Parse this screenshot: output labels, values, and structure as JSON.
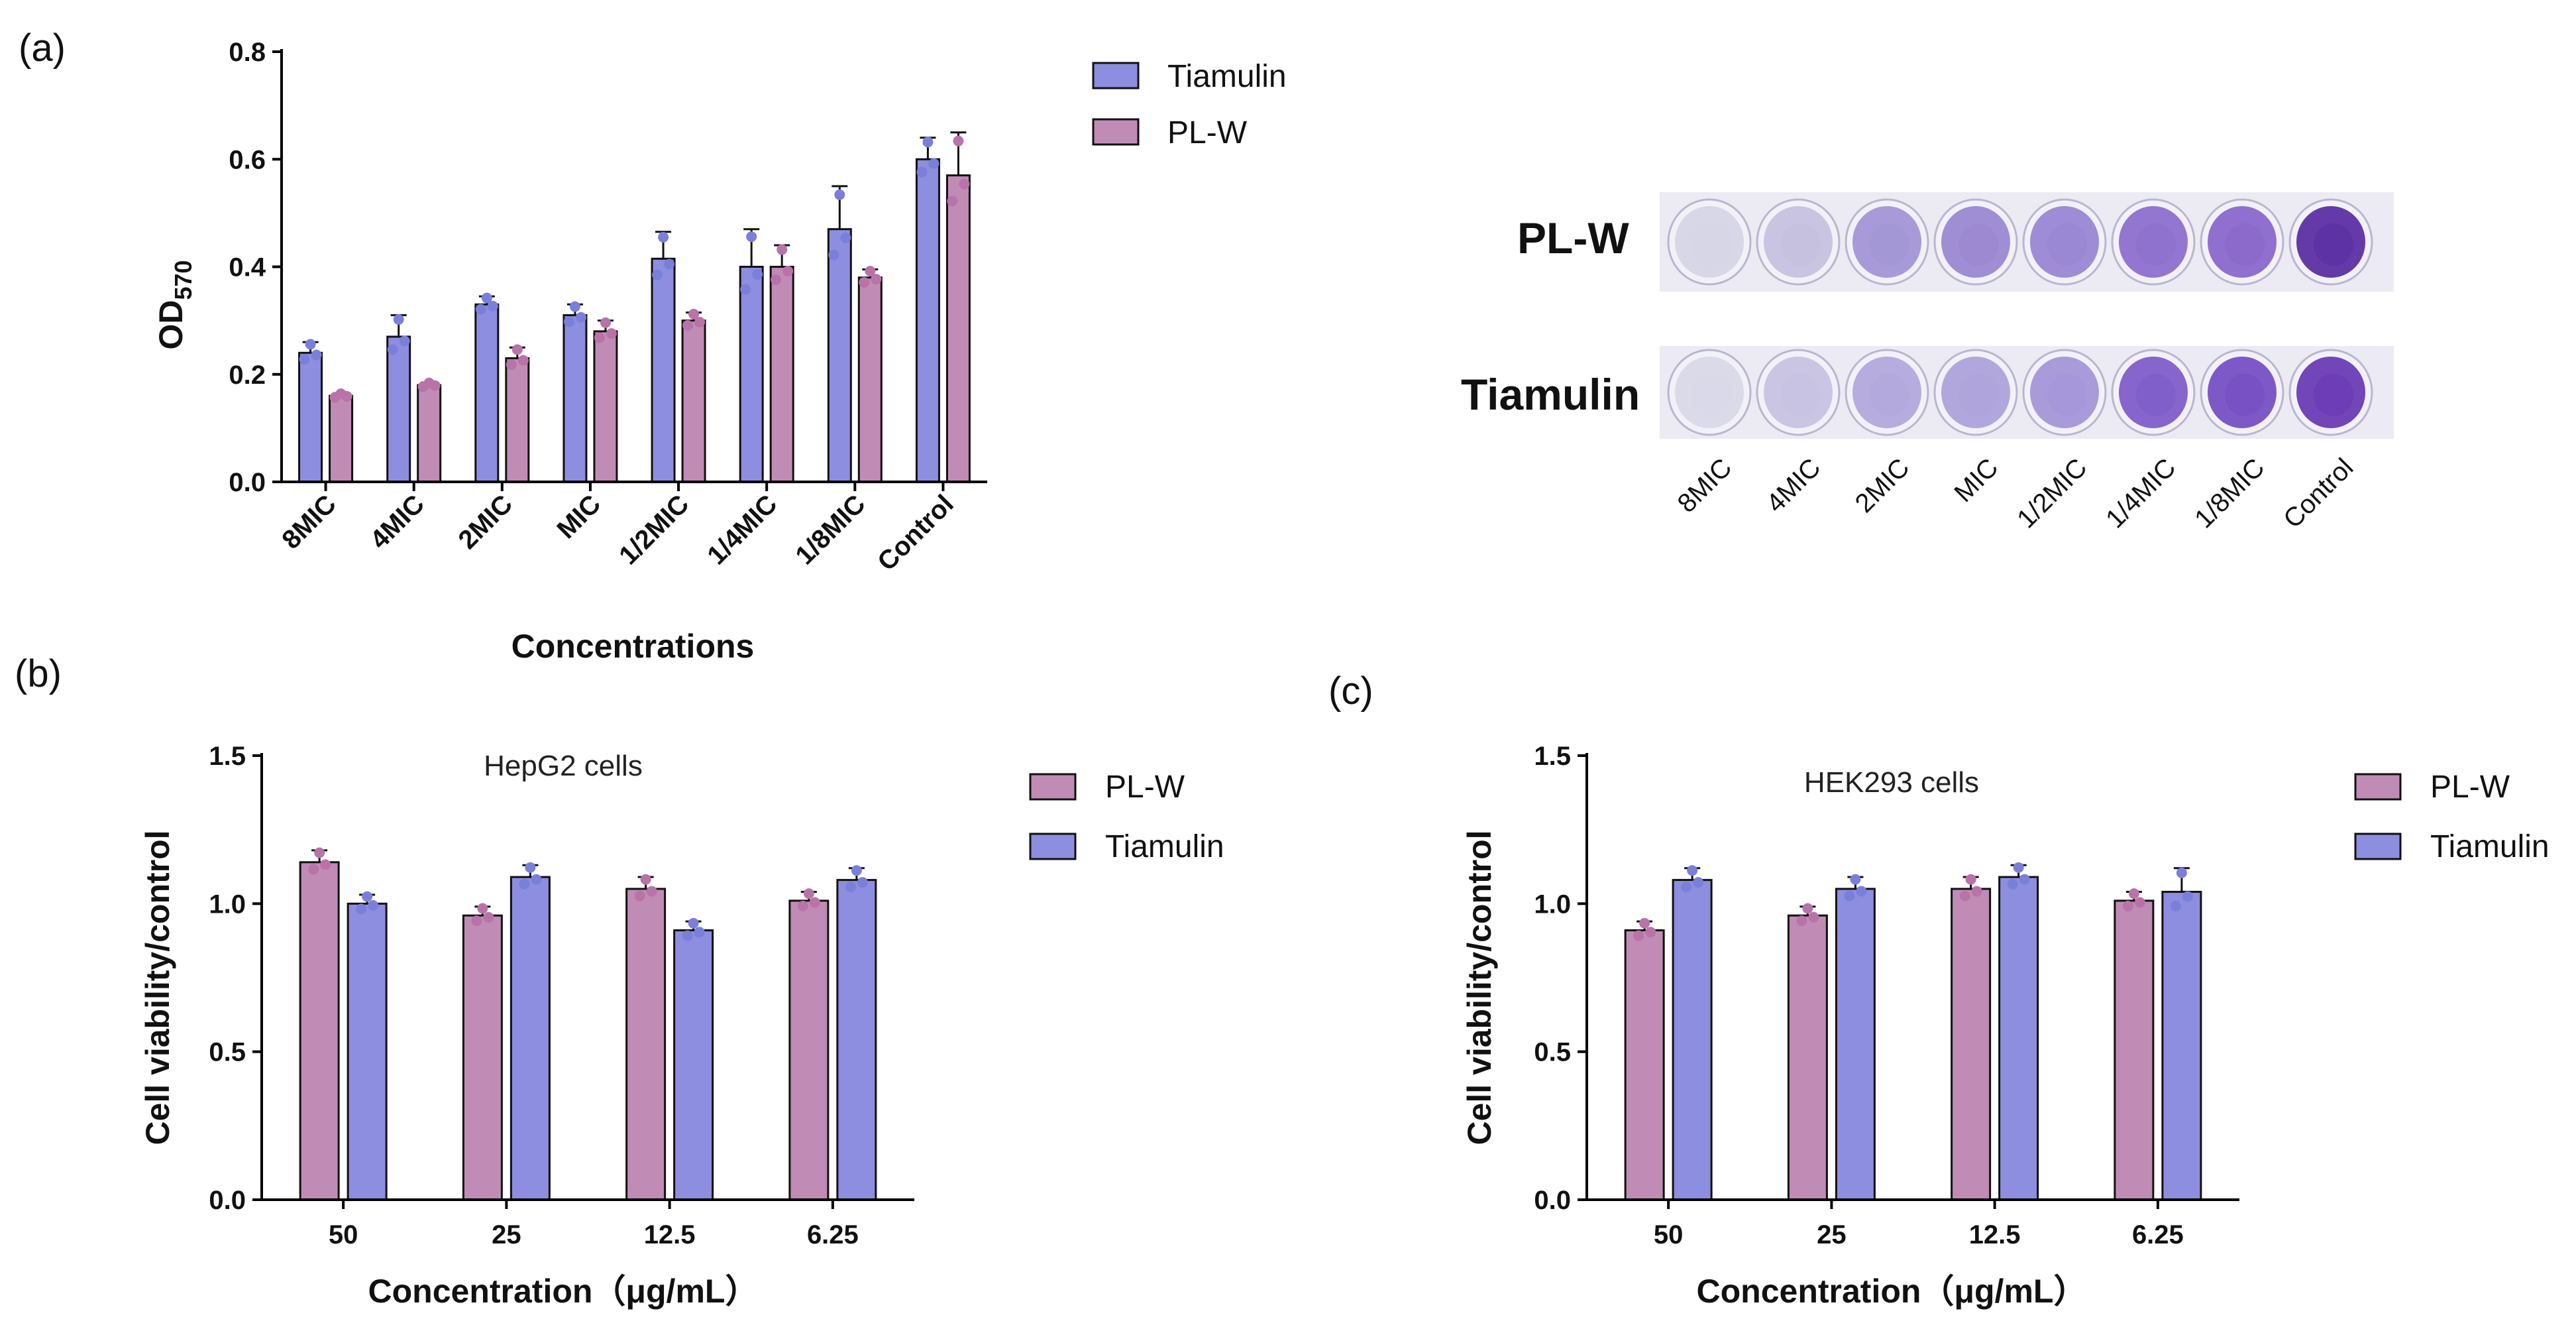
{
  "colors": {
    "tiamulin": "#8d8ee0",
    "plw": "#c08cb5",
    "tiamulin_point": "#7a7fd9",
    "plw_point": "#b873a8",
    "axis": "#000000"
  },
  "panel_labels": {
    "a": "(a)",
    "b": "(b)",
    "c": "(c)"
  },
  "chart_data": [
    {
      "id": "a",
      "type": "bar",
      "title": "",
      "xlabel": "Concentrations",
      "ylabel_main": "OD",
      "ylabel_sub": "570",
      "ylim": [
        0,
        0.8
      ],
      "yticks": [
        "0.0",
        "0.2",
        "0.4",
        "0.6",
        "0.8"
      ],
      "categories": [
        "8MIC",
        "4MIC",
        "2MIC",
        "MIC",
        "1/2MIC",
        "1/4MIC",
        "1/8MIC",
        "Control"
      ],
      "legend": [
        "Tiamulin",
        "PL-W"
      ],
      "series": [
        {
          "name": "Tiamulin",
          "values": [
            0.24,
            0.27,
            0.33,
            0.31,
            0.415,
            0.4,
            0.47,
            0.6
          ],
          "errors": [
            0.02,
            0.04,
            0.015,
            0.02,
            0.05,
            0.07,
            0.08,
            0.04
          ]
        },
        {
          "name": "PL-W",
          "values": [
            0.16,
            0.18,
            0.23,
            0.28,
            0.3,
            0.4,
            0.38,
            0.57
          ],
          "errors": [
            0.005,
            0.005,
            0.02,
            0.02,
            0.015,
            0.04,
            0.015,
            0.08
          ]
        }
      ]
    },
    {
      "id": "b",
      "type": "bar",
      "title": "HepG2 cells",
      "xlabel": "Concentration（μg/mL）",
      "ylabel": "Cell viability/control",
      "ylim": [
        0,
        1.5
      ],
      "yticks": [
        "0.0",
        "0.5",
        "1.0",
        "1.5"
      ],
      "categories": [
        "50",
        "25",
        "12.5",
        "6.25"
      ],
      "legend": [
        "PL-W",
        "Tiamulin"
      ],
      "series": [
        {
          "name": "PL-W",
          "values": [
            1.14,
            0.96,
            1.05,
            1.01
          ],
          "errors": [
            0.04,
            0.03,
            0.04,
            0.03
          ]
        },
        {
          "name": "Tiamulin",
          "values": [
            1.0,
            1.09,
            0.91,
            1.08
          ],
          "errors": [
            0.03,
            0.04,
            0.03,
            0.04
          ]
        }
      ]
    },
    {
      "id": "c",
      "type": "bar",
      "title": "HEK293 cells",
      "xlabel": "Concentration（μg/mL）",
      "ylabel": "Cell viability/control",
      "ylim": [
        0,
        1.5
      ],
      "yticks": [
        "0.0",
        "0.5",
        "1.0",
        "1.5"
      ],
      "categories": [
        "50",
        "25",
        "12.5",
        "6.25"
      ],
      "legend": [
        "PL-W",
        "Tiamulin"
      ],
      "series": [
        {
          "name": "PL-W",
          "values": [
            0.91,
            0.96,
            1.05,
            1.01
          ],
          "errors": [
            0.03,
            0.03,
            0.04,
            0.03
          ]
        },
        {
          "name": "Tiamulin",
          "values": [
            1.08,
            1.05,
            1.09,
            1.04
          ],
          "errors": [
            0.04,
            0.04,
            0.04,
            0.08
          ]
        }
      ]
    }
  ],
  "plate": {
    "rows": [
      "PL-W",
      "Tiamulin"
    ],
    "columns": [
      "8MIC",
      "4MIC",
      "2MIC",
      "MIC",
      "1/2MIC",
      "1/4MIC",
      "1/8MIC",
      "Control"
    ],
    "well_colors": {
      "PL-W": [
        "#d6d5e6",
        "#c6c1e0",
        "#a395d6",
        "#9b88d2",
        "#9a86d4",
        "#8d6fcd",
        "#8a68cb",
        "#5b2fa3"
      ],
      "Tiamulin": [
        "#d9d8e8",
        "#c7c2e1",
        "#b2a8dc",
        "#aea2da",
        "#a496d8",
        "#7f5dc9",
        "#7650c4",
        "#6a3bb5"
      ]
    }
  }
}
